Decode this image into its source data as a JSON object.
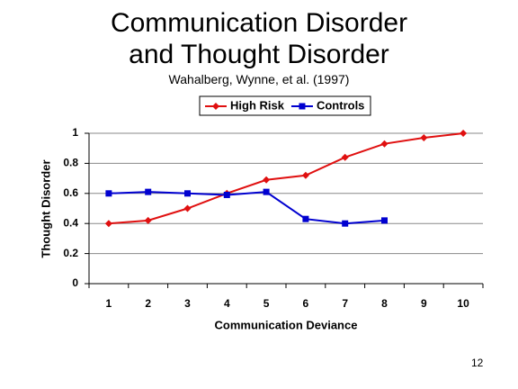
{
  "chart_data": {
    "type": "line",
    "title": "Communication Disorder and Thought Disorder",
    "subtitle": "Wahalberg, Wynne, et al. (1997)",
    "x_label": "Communication Deviance",
    "y_label": "Thought Disorder",
    "categories": [
      "1",
      "2",
      "3",
      "4",
      "5",
      "6",
      "7",
      "8",
      "9",
      "10"
    ],
    "series": [
      {
        "name": "High Risk",
        "color": "#e01010",
        "marker": "diamond",
        "values": [
          0.4,
          0.42,
          0.5,
          0.6,
          0.69,
          0.72,
          0.84,
          0.93,
          0.97,
          1.0
        ]
      },
      {
        "name": "Controls",
        "color": "#0000d0",
        "marker": "square",
        "values": [
          0.6,
          0.61,
          0.6,
          0.59,
          0.61,
          0.43,
          0.4,
          0.42,
          null,
          null
        ]
      }
    ],
    "ylim": [
      0,
      1
    ],
    "yticks": [
      0,
      0.2,
      0.4,
      0.6,
      0.8,
      1
    ],
    "grid": true,
    "legend": "top"
  },
  "page_number": "12"
}
